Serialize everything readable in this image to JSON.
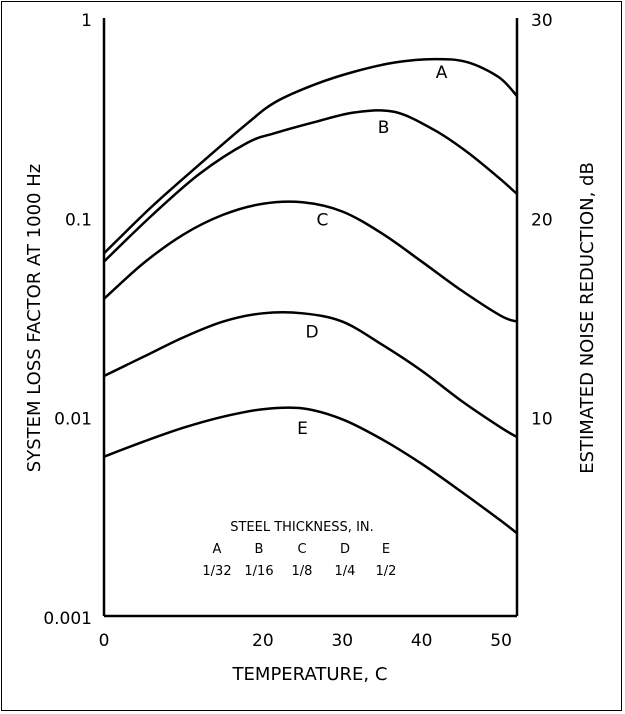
{
  "chart_data": {
    "type": "line",
    "title": "",
    "xlabel": "TEMPERATURE, C",
    "ylabel_left": "SYSTEM LOSS FACTOR AT 1000 Hz",
    "ylabel_right": "ESTIMATED NOISE REDUCTION, dB",
    "x_scale": "linear",
    "y_scale": "log",
    "xlim": [
      0,
      52
    ],
    "ylim": [
      0.001,
      1
    ],
    "y2lim": [
      0,
      30
    ],
    "x_ticks": [
      {
        "value": 0,
        "label": "0"
      },
      {
        "value": 20,
        "label": "20"
      },
      {
        "value": 30,
        "label": "30"
      },
      {
        "value": 40,
        "label": "40"
      },
      {
        "value": 50,
        "label": "50"
      }
    ],
    "y_ticks": [
      {
        "value": 1,
        "label": "1"
      },
      {
        "value": 0.1,
        "label": "0.1"
      },
      {
        "value": 0.01,
        "label": "0.01"
      },
      {
        "value": 0.001,
        "label": "0.001"
      }
    ],
    "y2_ticks": [
      {
        "value": 30,
        "label": "30"
      },
      {
        "value": 20,
        "label": "20"
      },
      {
        "value": 10,
        "label": "10"
      }
    ],
    "grid": false,
    "series": [
      {
        "name": "A",
        "x": [
          0,
          6,
          12,
          18,
          21.6,
          26.6,
          31.6,
          36.6,
          41.6,
          45.7,
          49.7,
          52
        ],
        "y": [
          0.066,
          0.113,
          0.184,
          0.295,
          0.379,
          0.465,
          0.539,
          0.598,
          0.622,
          0.601,
          0.505,
          0.406
        ]
      },
      {
        "name": "B",
        "x": [
          0,
          6,
          12,
          18,
          21.6,
          26.6,
          31.6,
          36.6,
          41.6,
          45.7,
          49.7,
          52
        ],
        "y": [
          0.06,
          0.102,
          0.165,
          0.236,
          0.265,
          0.301,
          0.336,
          0.338,
          0.274,
          0.213,
          0.158,
          0.131
        ]
      },
      {
        "name": "C",
        "x": [
          0,
          5,
          10,
          15,
          20,
          25,
          30,
          35,
          40,
          45,
          50,
          52
        ],
        "y": [
          0.039,
          0.059,
          0.082,
          0.103,
          0.117,
          0.119,
          0.107,
          0.083,
          0.06,
          0.043,
          0.032,
          0.03
        ]
      },
      {
        "name": "D",
        "x": [
          0,
          5,
          10,
          15,
          20,
          25,
          30,
          35,
          40,
          45,
          50,
          52
        ],
        "y": [
          0.016,
          0.02,
          0.025,
          0.03,
          0.033,
          0.033,
          0.03,
          0.023,
          0.017,
          0.012,
          0.0088,
          0.0079
        ]
      },
      {
        "name": "E",
        "x": [
          0,
          5,
          10,
          15,
          20,
          25,
          30,
          35,
          40,
          45,
          50,
          52
        ],
        "y": [
          0.0063,
          0.0075,
          0.0088,
          0.01,
          0.0109,
          0.011,
          0.0097,
          0.0077,
          0.0058,
          0.0042,
          0.003,
          0.0026
        ]
      }
    ],
    "curve_labels": [
      {
        "text": "A",
        "x": 42.5,
        "y": 0.5
      },
      {
        "text": "B",
        "x": 35.2,
        "y": 0.265
      },
      {
        "text": "C",
        "x": 27.5,
        "y": 0.091
      },
      {
        "text": "D",
        "x": 26.2,
        "y": 0.025
      },
      {
        "text": "E",
        "x": 25,
        "y": 0.0082
      }
    ],
    "legend": {
      "title": "STEEL THICKNESS, IN.",
      "entries": [
        {
          "key": "A",
          "value": "1/32"
        },
        {
          "key": "B",
          "value": "1/16"
        },
        {
          "key": "C",
          "value": "1/8"
        },
        {
          "key": "D",
          "value": "1/4"
        },
        {
          "key": "E",
          "value": "1/2"
        }
      ],
      "placement": "bottom-center"
    },
    "line_color": "#000000"
  }
}
